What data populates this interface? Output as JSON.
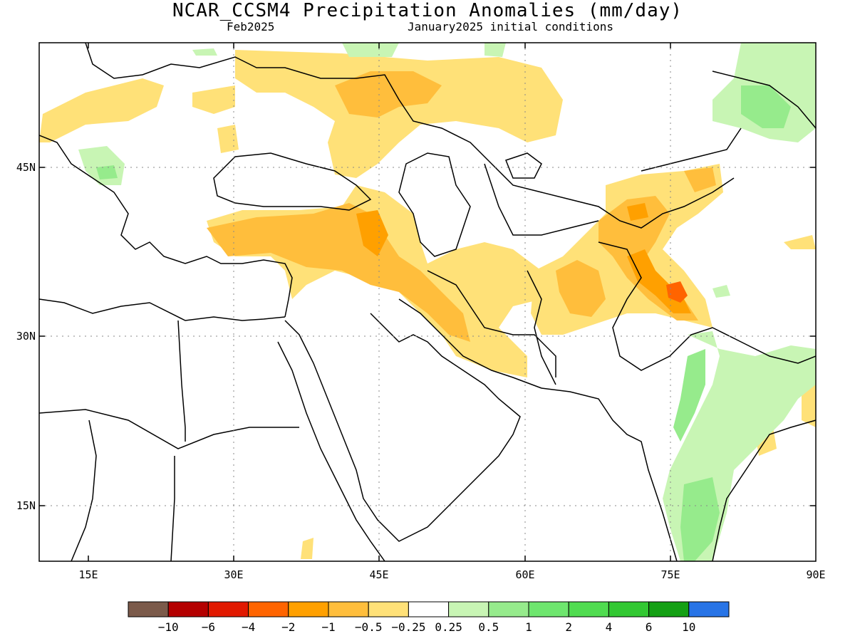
{
  "title": "NCAR_CCSM4 Precipitation Anomalies (mm/day)",
  "valid_month": "Feb2025",
  "init_conditions": "January2025 initial conditions",
  "lat_labels": [
    "45N",
    "30N",
    "15N"
  ],
  "lon_labels": [
    "15E",
    "30E",
    "45E",
    "60E",
    "75E",
    "90E"
  ],
  "colorbar": {
    "labels": [
      "−10",
      "−6",
      "−4",
      "−2",
      "−1",
      "−0.5",
      "−0.25",
      "0.25",
      "0.5",
      "1",
      "2",
      "4",
      "6",
      "10"
    ],
    "colors": [
      "#7b5a4a",
      "#b40000",
      "#e11900",
      "#ff6400",
      "#ffa000",
      "#ffbe3c",
      "#ffe178",
      "#ffffff",
      "#c8f5b4",
      "#96eb8c",
      "#6ee66e",
      "#50dc50",
      "#32c832",
      "#14a014",
      "#2874e6"
    ]
  },
  "colors": {
    "dry_light": "#ffe178",
    "dry_mid": "#ffbe3c",
    "dry_strong": "#ffa000",
    "dry_max": "#ff6400",
    "wet_light": "#c8f5b4",
    "wet_mid": "#96eb8c",
    "wet_strong": "#6ee66e"
  }
}
